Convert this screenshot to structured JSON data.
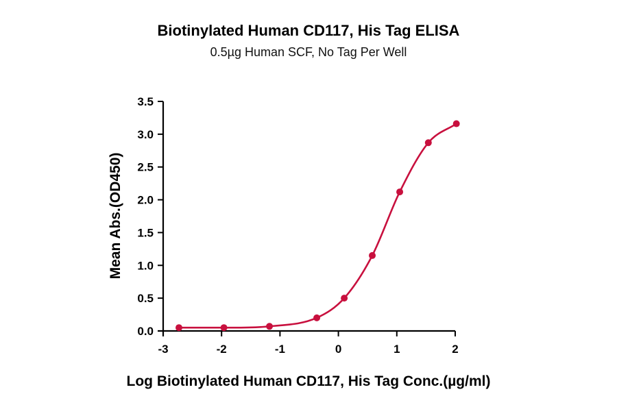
{
  "chart_data": {
    "type": "scatter",
    "title": "Biotinylated Human CD117, His Tag ELISA",
    "subtitle": "0.5µg Human SCF, No Tag Per Well",
    "xlabel": "Log Biotinylated Human CD117, His Tag Conc.(µg/ml)",
    "ylabel": "Mean Abs.(OD450)",
    "xlim": [
      -3,
      2
    ],
    "ylim": [
      0,
      3.5
    ],
    "x_ticks": [
      "-3",
      "-2",
      "-1",
      "0",
      "1",
      "2"
    ],
    "y_ticks": [
      "0.0",
      "0.5",
      "1.0",
      "1.5",
      "2.0",
      "2.5",
      "3.0",
      "3.5"
    ],
    "grid": false,
    "series": [
      {
        "x": [
          -2.73,
          -1.96,
          -1.18,
          -0.37,
          0.1,
          0.58,
          1.05,
          1.54,
          2.02
        ],
        "y": [
          0.05,
          0.05,
          0.07,
          0.2,
          0.5,
          1.15,
          2.12,
          2.87,
          3.16
        ],
        "fit": "sigmoidal"
      }
    ],
    "color": "#c8103e"
  }
}
